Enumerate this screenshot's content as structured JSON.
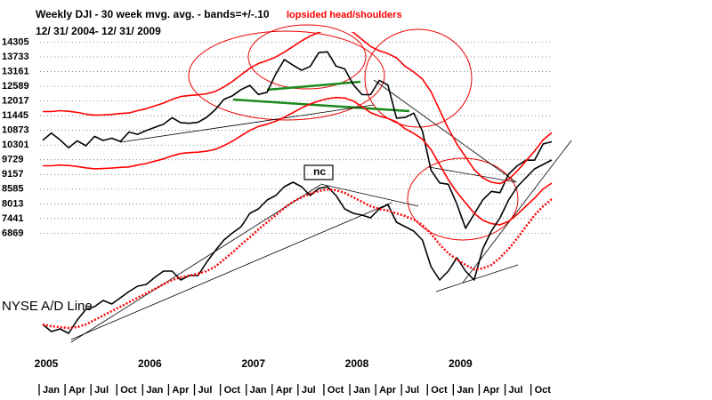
{
  "chart_data": [
    {
      "type": "line",
      "title": "Weekly DJI - 30 week mvg. avg. - bands=+/-.10",
      "subtitle": "12/ 31/ 2004- 12/ 31/ 2009",
      "annotations": [
        {
          "text": "lopsided head/shoulders",
          "color": "#ff0000"
        },
        {
          "text": "nc",
          "color": "#000000"
        }
      ],
      "x": [
        "2005-01",
        "2005-02",
        "2005-03",
        "2005-04",
        "2005-05",
        "2005-06",
        "2005-07",
        "2005-08",
        "2005-09",
        "2005-10",
        "2005-11",
        "2005-12",
        "2006-01",
        "2006-02",
        "2006-03",
        "2006-04",
        "2006-05",
        "2006-06",
        "2006-07",
        "2006-08",
        "2006-09",
        "2006-10",
        "2006-11",
        "2006-12",
        "2007-01",
        "2007-02",
        "2007-03",
        "2007-04",
        "2007-05",
        "2007-06",
        "2007-07",
        "2007-08",
        "2007-09",
        "2007-10",
        "2007-11",
        "2007-12",
        "2008-01",
        "2008-02",
        "2008-03",
        "2008-04",
        "2008-05",
        "2008-06",
        "2008-07",
        "2008-08",
        "2008-09",
        "2008-10",
        "2008-11",
        "2008-12",
        "2009-01",
        "2009-02",
        "2009-03",
        "2009-04",
        "2009-05",
        "2009-06",
        "2009-07",
        "2009-08",
        "2009-09",
        "2009-10",
        "2009-11",
        "2009-12"
      ],
      "series": [
        {
          "color": "#000000",
          "values": [
            10490,
            10766,
            10504,
            10193,
            10467,
            10275,
            10641,
            10482,
            10569,
            10440,
            10806,
            10718,
            10865,
            10993,
            11109,
            11367,
            11168,
            11150,
            11186,
            11381,
            11679,
            12081,
            12222,
            12463,
            12622,
            12269,
            12354,
            13063,
            13628,
            13409,
            13212,
            13358,
            13896,
            13930,
            13372,
            13265,
            12650,
            12266,
            12263,
            12820,
            12638,
            11350,
            11378,
            11544,
            10851,
            9325,
            8829,
            8776,
            8001,
            7063,
            7609,
            8168,
            8500,
            8447,
            9172,
            9496,
            9712,
            9713,
            10345,
            10428
          ]
        },
        {
          "color": "#ff0000",
          "values": [
            11605,
            11605,
            11638,
            11616,
            11572,
            11506,
            11462,
            11473,
            11495,
            11528,
            11550,
            11638,
            11715,
            11825,
            11935,
            12078,
            12188,
            12232,
            12254,
            12298,
            12386,
            12562,
            12782,
            13035,
            13288,
            13475,
            13585,
            13728,
            13915,
            14135,
            14355,
            14542,
            14685,
            14795,
            14850,
            14828,
            14685,
            14410,
            14135,
            13970,
            13860,
            13695,
            13365,
            13145,
            12870,
            12375,
            11660,
            10945,
            10340,
            9845,
            9350,
            9020,
            8855,
            8800,
            8965,
            9295,
            9680,
            10065,
            10505,
            10780
          ]
        },
        {
          "color": "#ff0000",
          "values": [
            9495,
            9495,
            9522,
            9504,
            9468,
            9414,
            9378,
            9387,
            9405,
            9432,
            9450,
            9522,
            9585,
            9675,
            9765,
            9882,
            9972,
            10008,
            10026,
            10062,
            10134,
            10278,
            10458,
            10665,
            10872,
            11025,
            11115,
            11232,
            11385,
            11565,
            11745,
            11898,
            12015,
            12105,
            12150,
            12132,
            12015,
            11790,
            11565,
            11430,
            11340,
            11205,
            10935,
            10755,
            10530,
            10125,
            9540,
            8955,
            8460,
            8055,
            7650,
            7380,
            7245,
            7200,
            7335,
            7605,
            7920,
            8235,
            8595,
            8820
          ]
        }
      ],
      "ylim": [
        6400,
        14700
      ],
      "yticks": [
        14305,
        13733,
        13161,
        12589,
        12017,
        11445,
        10873,
        10301,
        9729,
        9157,
        8585,
        8013,
        7441,
        6869
      ],
      "grid": true,
      "xticks": [
        {
          "value": "2005-01",
          "label": "Jan"
        },
        {
          "value": "2005-04",
          "label": "Apr"
        },
        {
          "value": "2005-07",
          "label": "Jul"
        },
        {
          "value": "2005-10",
          "label": "Oct"
        },
        {
          "value": "2006-01",
          "label": "Jan"
        },
        {
          "value": "2006-04",
          "label": "Apr"
        },
        {
          "value": "2006-07",
          "label": "Jul"
        },
        {
          "value": "2006-10",
          "label": "Oct"
        },
        {
          "value": "2007-01",
          "label": "Jan"
        },
        {
          "value": "2007-04",
          "label": "Apr"
        },
        {
          "value": "2007-07",
          "label": "Jul"
        },
        {
          "value": "2007-10",
          "label": "Oct"
        },
        {
          "value": "2008-01",
          "label": "Jan"
        },
        {
          "value": "2008-04",
          "label": "Apr"
        },
        {
          "value": "2008-07",
          "label": "Jul"
        },
        {
          "value": "2008-10",
          "label": "Oct"
        },
        {
          "value": "2009-01",
          "label": "Jan"
        },
        {
          "value": "2009-04",
          "label": "Apr"
        },
        {
          "value": "2009-07",
          "label": "Jul"
        },
        {
          "value": "2009-10",
          "label": "Oct"
        }
      ],
      "year_labels": [
        {
          "value": "2005-01",
          "label": "2005"
        },
        {
          "value": "2006-01",
          "label": "2006"
        },
        {
          "value": "2007-01",
          "label": "2007"
        },
        {
          "value": "2008-01",
          "label": "2008"
        },
        {
          "value": "2009-01",
          "label": "2009"
        }
      ]
    },
    {
      "type": "line",
      "title": "NYSE A/D Line",
      "series": [
        {
          "color": "#000000",
          "values": [
            35,
            27,
            30,
            25,
            40,
            52,
            55,
            62,
            58,
            65,
            72,
            78,
            80,
            88,
            95,
            95,
            85,
            90,
            90,
            105,
            118,
            130,
            138,
            145,
            160,
            165,
            175,
            180,
            190,
            195,
            190,
            180,
            188,
            190,
            180,
            165,
            160,
            158,
            155,
            165,
            170,
            150,
            145,
            140,
            130,
            100,
            85,
            95,
            110,
            95,
            85,
            120,
            140,
            155,
            175,
            190,
            200,
            210,
            215,
            220
          ]
        },
        {
          "color": "#ff0000",
          "dotted": true,
          "values": [
            35,
            33,
            32,
            31,
            32,
            35,
            40,
            45,
            50,
            55,
            60,
            65,
            70,
            75,
            80,
            85,
            88,
            90,
            92,
            95,
            100,
            108,
            116,
            125,
            133,
            142,
            150,
            158,
            166,
            173,
            178,
            182,
            185,
            187,
            186,
            183,
            178,
            173,
            168,
            165,
            163,
            160,
            157,
            153,
            147,
            137,
            125,
            115,
            108,
            102,
            97,
            98,
            102,
            110,
            120,
            132,
            145,
            158,
            168,
            176
          ]
        }
      ],
      "ylim": [
        0,
        240
      ]
    }
  ]
}
